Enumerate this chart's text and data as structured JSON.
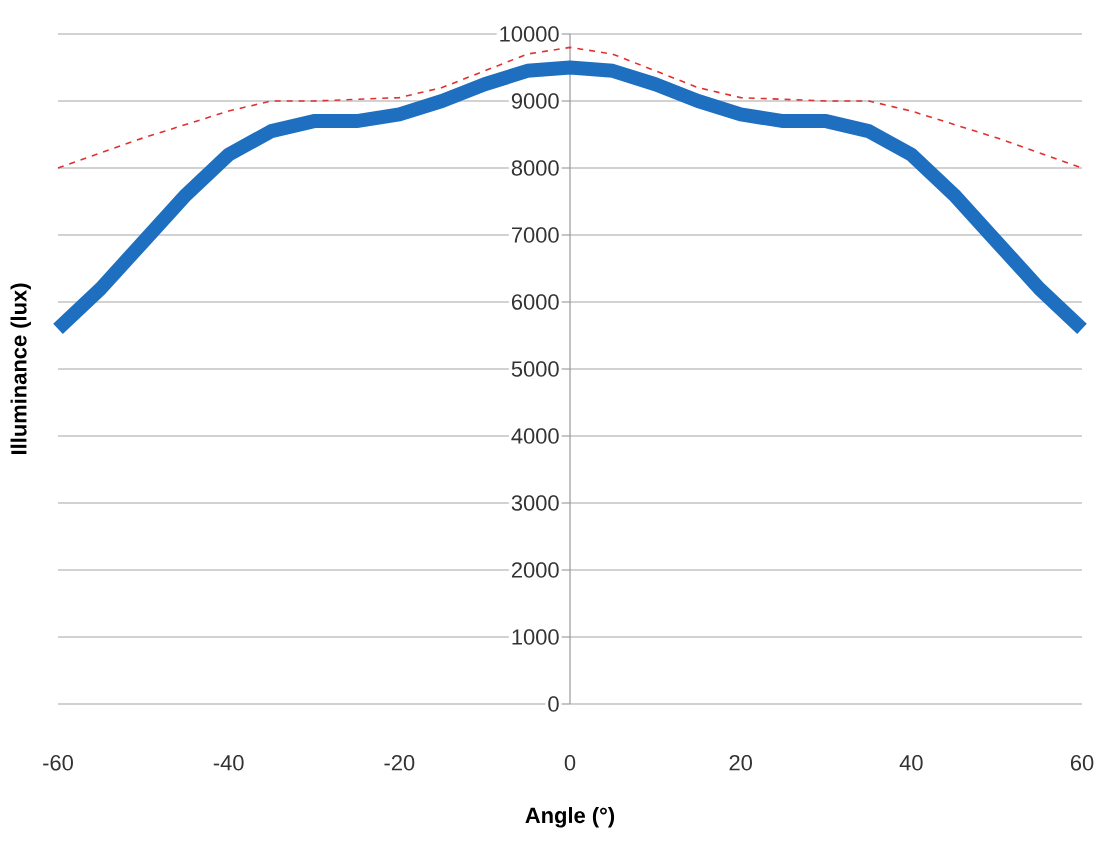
{
  "chart_data": {
    "type": "line",
    "xlabel": "Angle (°)",
    "ylabel": "Illuminance (lux)",
    "xlim": [
      -60,
      60
    ],
    "ylim": [
      0,
      10000
    ],
    "xticks": [
      -60,
      -40,
      -20,
      0,
      20,
      40,
      60
    ],
    "yticks": [
      0,
      1000,
      2000,
      3000,
      4000,
      5000,
      6000,
      7000,
      8000,
      9000,
      10000
    ],
    "grid": "y",
    "series": [
      {
        "color": "#1f6fc0",
        "line_style": "solid",
        "x": [
          -60,
          -55,
          -50,
          -45,
          -40,
          -35,
          -30,
          -25,
          -20,
          -15,
          -10,
          -5,
          0,
          5,
          10,
          15,
          20,
          25,
          30,
          35,
          40,
          45,
          50,
          55,
          60
        ],
        "values": [
          5600,
          6200,
          6900,
          7600,
          8200,
          8550,
          8700,
          8700,
          8800,
          9000,
          9250,
          9450,
          9500,
          9450,
          9250,
          9000,
          8800,
          8700,
          8700,
          8550,
          8200,
          7600,
          6900,
          6200,
          5600
        ]
      },
      {
        "color": "#e03030",
        "line_style": "dashed",
        "x": [
          -60,
          -50,
          -40,
          -35,
          -30,
          -20,
          -15,
          -10,
          -5,
          0,
          5,
          10,
          15,
          20,
          30,
          35,
          40,
          50,
          60
        ],
        "values": [
          8000,
          8450,
          8850,
          9000,
          9000,
          9050,
          9200,
          9450,
          9700,
          9800,
          9700,
          9450,
          9200,
          9050,
          9000,
          9000,
          8850,
          8450,
          8000
        ]
      }
    ]
  }
}
